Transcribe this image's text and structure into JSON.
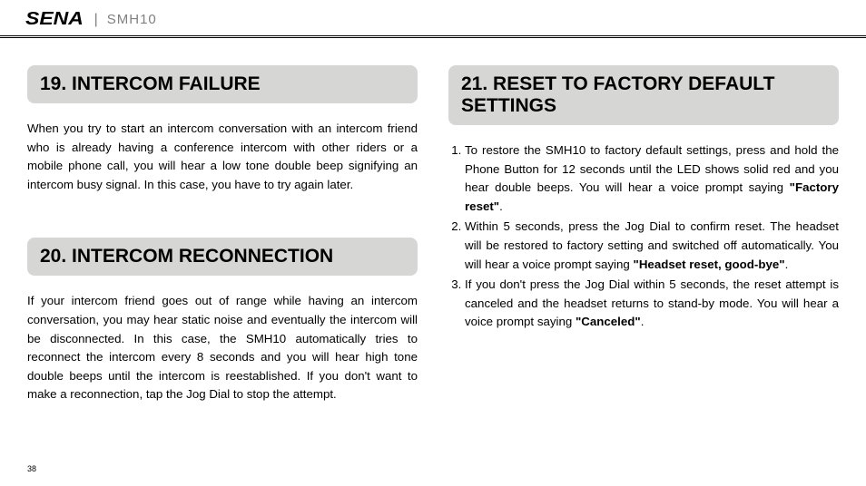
{
  "header": {
    "logo": "SENA",
    "model": "SMH10"
  },
  "left": {
    "sec19": {
      "title": "19. INTERCOM FAILURE",
      "body": "When you try to start an intercom conversation with an intercom friend who is already having a conference intercom with other riders or a mobile phone call, you will hear a low tone double beep signifying an intercom busy signal. In this case, you have to try again later."
    },
    "sec20": {
      "title": "20. INTERCOM RECONNECTION",
      "body": "If your intercom friend goes out of range while having an intercom conversation, you may hear static noise and eventually the intercom will be disconnected. In this case, the SMH10 automatically tries to reconnect the intercom every 8 seconds and you will hear high tone double beeps until the intercom is reestablished. If you don't want to make a reconnection, tap the Jog Dial to stop the attempt."
    }
  },
  "right": {
    "sec21": {
      "title": "21. RESET TO FACTORY DEFAULT SETTINGS",
      "item1_a": "To restore the SMH10 to factory default settings, press and hold the Phone Button for 12 seconds until the LED shows solid red and you hear double beeps. You will hear a voice prompt saying ",
      "item1_b": "\"Factory reset\"",
      "item1_c": ".",
      "item2_a": "Within 5 seconds, press the Jog Dial to confirm reset. The headset will be restored to factory setting and switched off automatically. You will hear a voice prompt saying ",
      "item2_b": "\"Headset reset, good-bye\"",
      "item2_c": ".",
      "item3_a": "If you don't press the Jog Dial within 5 seconds, the reset attempt is canceled and the headset returns to stand-by mode. You will hear a voice prompt saying ",
      "item3_b": "\"Canceled\"",
      "item3_c": "."
    }
  },
  "page_number": "38"
}
